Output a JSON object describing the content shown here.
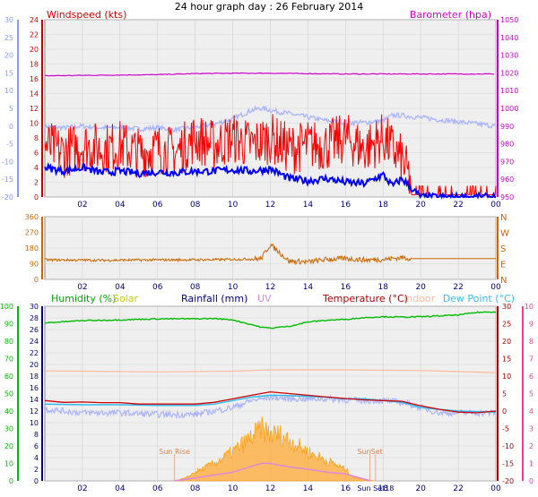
{
  "title": "24 hour graph day : 26 February 2014",
  "colors": {
    "wind_gust": "#ff0000",
    "wind_avg": "#0000ff",
    "barometer": "#cc00cc",
    "temperature": "#cc0000",
    "wind_dir": "#cc6600",
    "humidity": "#00bb00",
    "solar": "#ffaa33",
    "solar_label": "#dddd00",
    "rainfall": "#000080",
    "uv": "#dd88dd",
    "indoor": "#ffbb99",
    "dew_point": "#33bbee",
    "temp_left_axis": "#8899ff",
    "humidity_axis": "#00bb00",
    "dew_axis": "#ff3399",
    "plot_bg": "#efefef"
  },
  "chart_data": [
    {
      "type": "line",
      "title": "24 hour graph day : 26 February 2014",
      "left_label": "Windspeed (kts)",
      "right_label": "Barometer (hpa)",
      "left_ticks": [
        "24",
        "22",
        "20",
        "18",
        "16",
        "14",
        "12",
        "10",
        "8",
        "6",
        "4",
        "2",
        "0"
      ],
      "far_left_ticks": [
        "30",
        "25",
        "20",
        "15",
        "10",
        "5",
        "0",
        "-5",
        "-10",
        "-15",
        "-20"
      ],
      "right_ticks": [
        "1050",
        "1040",
        "1030",
        "1020",
        "1010",
        "1000",
        "990",
        "980",
        "970",
        "960",
        "950"
      ],
      "x_ticks": [
        "02",
        "04",
        "06",
        "08",
        "10",
        "12",
        "14",
        "16",
        "18",
        "20",
        "22",
        "00"
      ],
      "ylim_wind": [
        0,
        25
      ],
      "ylim_baro": [
        948,
        1052
      ],
      "ylim_temp": [
        -20,
        30
      ],
      "series": [
        {
          "name": "Windspeed (kts)",
          "key": "gust",
          "x": [
            0,
            1,
            2,
            3,
            4,
            5,
            6,
            7,
            8,
            9,
            10,
            11,
            12,
            13,
            14,
            15,
            16,
            17,
            18,
            19,
            19.5,
            20,
            21,
            22,
            23,
            24
          ],
          "values": [
            7,
            6,
            7,
            6.5,
            7,
            6,
            6.5,
            6,
            8,
            7,
            8,
            7,
            8,
            6.5,
            7,
            7,
            8,
            6.5,
            8,
            5,
            2,
            0.5,
            0.5,
            0.5,
            0.5,
            0.5
          ]
        },
        {
          "name": "Windspeed avg",
          "key": "avg",
          "x": [
            0,
            1,
            2,
            3,
            4,
            5,
            6,
            7,
            8,
            9,
            10,
            11,
            12,
            13,
            14,
            15,
            16,
            17,
            18,
            18.5,
            19,
            19.5,
            20,
            20.5,
            21,
            22,
            23,
            24
          ],
          "values": [
            4,
            3.5,
            4,
            3.3,
            3.5,
            3.2,
            3.4,
            3.3,
            3.5,
            3.5,
            3.7,
            3.5,
            3.8,
            2.5,
            2.2,
            2.5,
            2,
            1.8,
            3,
            1.5,
            2.5,
            1.2,
            0,
            0,
            0,
            0,
            0,
            0
          ]
        },
        {
          "name": "Barometer (hpa)",
          "key": "baro",
          "x": [
            0,
            2,
            4,
            6,
            8,
            10,
            12,
            14,
            16,
            18,
            20,
            22,
            24
          ],
          "values": [
            1018.4,
            1018.6,
            1018.8,
            1019.0,
            1019.6,
            1019.8,
            1019.8,
            1019.6,
            1019.4,
            1019.4,
            1019.4,
            1019.4,
            1019.4
          ]
        },
        {
          "name": "Temperature",
          "key": "temp",
          "x": [
            0,
            1,
            2,
            3,
            4,
            5,
            6,
            7,
            8,
            9,
            10,
            11,
            11.5,
            12,
            13,
            14,
            15,
            16,
            17,
            18,
            18.5,
            19,
            24
          ],
          "values": [
            0,
            -0.5,
            0,
            -0.5,
            -0.3,
            -0.8,
            -0.5,
            -1,
            -0.3,
            0.5,
            2,
            4.5,
            5,
            4.5,
            3.5,
            2.5,
            1.5,
            1,
            1,
            1.5,
            3,
            3,
            0
          ]
        }
      ]
    },
    {
      "type": "line",
      "right_labels": [
        "N",
        "W",
        "S",
        "E",
        "N"
      ],
      "left_ticks": [
        "360",
        "270",
        "180",
        "90",
        "0"
      ],
      "x_ticks": [
        "02",
        "04",
        "06",
        "08",
        "10",
        "12",
        "14",
        "16",
        "18",
        "20",
        "22",
        "00"
      ],
      "ylim": [
        0,
        360
      ],
      "series": [
        {
          "name": "Wind direction",
          "key": "dir",
          "x": [
            0,
            3,
            6,
            9,
            11.5,
            12,
            13,
            14,
            15,
            16,
            17,
            18,
            19,
            19.5,
            24
          ],
          "values": [
            112,
            110,
            112,
            113,
            118,
            200,
            105,
            100,
            115,
            120,
            112,
            115,
            125,
            120,
            120
          ]
        }
      ]
    },
    {
      "type": "line",
      "labels": [
        "Humidity (%)",
        "Solar",
        "Rainfall (mm)",
        "UV",
        "Temperature (°C)",
        "Indoor",
        "Dew Point (°C)"
      ],
      "humidity_ticks": [
        "100",
        "90",
        "80",
        "70",
        "60",
        "50",
        "40",
        "30",
        "20",
        "10",
        "0"
      ],
      "rain_ticks": [
        "30",
        "28",
        "26",
        "24",
        "22",
        "20",
        "18",
        "16",
        "14",
        "12",
        "10",
        "8",
        "6",
        "4",
        "2",
        "0"
      ],
      "temp_ticks": [
        "30",
        "25",
        "20",
        "15",
        "10",
        "5",
        "0",
        "-5",
        "-10",
        "-15",
        "-20"
      ],
      "dew_ticks": [
        "10",
        "9",
        "8",
        "7",
        "6",
        "5",
        "4",
        "3",
        "2",
        "1",
        "0"
      ],
      "x_ticks": [
        "02",
        "04",
        "06",
        "08",
        "10",
        "12",
        "14",
        "16",
        "18",
        "20",
        "22",
        "00"
      ],
      "ylim_humidity": [
        0,
        100
      ],
      "ylim_temp": [
        -20,
        30
      ],
      "annotations": [
        {
          "text": "Sun Rise",
          "x": 6.9
        },
        {
          "text": "SunSet",
          "x": 17.3
        },
        {
          "text": "Sun Set18",
          "x": 17.6
        }
      ],
      "series": [
        {
          "name": "Humidity (%)",
          "key": "hum",
          "x": [
            0,
            2,
            4,
            6,
            8,
            9,
            10,
            11,
            11.5,
            12,
            13,
            14,
            15,
            16,
            17,
            18,
            19,
            20,
            22,
            23,
            24
          ],
          "values": [
            90.5,
            91.8,
            92.2,
            92.8,
            92.8,
            93,
            92.2,
            89.5,
            88,
            87.5,
            88.5,
            91,
            92,
            92.5,
            93.5,
            94,
            93.8,
            94,
            95,
            96.5,
            96.8
          ]
        },
        {
          "name": "Temperature (°C)",
          "key": "temp",
          "x": [
            0,
            1,
            2,
            3,
            4,
            5,
            6,
            8,
            9,
            10,
            11,
            12,
            13,
            14,
            15,
            16,
            17,
            18,
            19,
            20,
            21,
            22,
            23,
            24
          ],
          "values": [
            3,
            2.5,
            2.6,
            2.4,
            2.4,
            2,
            2,
            2,
            2.5,
            3.5,
            4.5,
            5.5,
            5,
            4.5,
            4,
            3.6,
            3.2,
            3,
            2.8,
            1.5,
            0.5,
            -0.3,
            -0.5,
            0
          ]
        },
        {
          "name": "Indoor",
          "key": "indoor",
          "x": [
            0,
            6,
            10,
            12,
            16,
            20,
            24
          ],
          "values": [
            11.5,
            11.2,
            11.4,
            11.8,
            11.8,
            11.6,
            11
          ]
        },
        {
          "name": "Dew Point (°C)",
          "key": "dew",
          "x": [
            0,
            2,
            4,
            6,
            8,
            9,
            10,
            11,
            12,
            13,
            14,
            15,
            16,
            17,
            18,
            19,
            20,
            21,
            22,
            24
          ],
          "values": [
            2,
            1.8,
            1.8,
            1.6,
            1.6,
            2,
            3,
            4,
            4.5,
            4.4,
            4.2,
            4,
            3.5,
            3.5,
            3,
            2.5,
            1,
            0.5,
            0,
            -0.3
          ]
        },
        {
          "name": "Temperature low",
          "key": "tlow",
          "x": [
            0,
            2,
            4,
            6,
            8,
            9,
            10,
            11,
            12,
            13,
            14,
            15,
            16,
            17,
            18,
            19,
            20,
            21,
            22,
            24
          ],
          "values": [
            0.5,
            -0.5,
            -0.5,
            -1,
            -1,
            0,
            1,
            3,
            4,
            3.5,
            3.5,
            3.5,
            3.2,
            3,
            3,
            2.5,
            1,
            -0.5,
            -0.5,
            -0.5
          ]
        },
        {
          "name": "Solar",
          "key": "solar",
          "x": [
            6.9,
            7.5,
            8,
            9,
            10,
            11,
            11.5,
            12,
            12.5,
            13,
            14,
            15,
            16,
            16.5,
            17,
            17.5
          ],
          "values": [
            0,
            0.5,
            1.5,
            3,
            5,
            7.5,
            9,
            8,
            8,
            7,
            5,
            3.5,
            2,
            0.5,
            0.3,
            0
          ]
        },
        {
          "name": "UV",
          "key": "uv",
          "x": [
            6.9,
            8,
            9,
            10,
            11,
            11.5,
            12,
            12.5,
            13,
            14,
            15,
            16,
            17,
            17.3
          ],
          "values": [
            0,
            0.5,
            1,
            1.5,
            2.5,
            3,
            3,
            2.7,
            2.4,
            2,
            1.5,
            1.2,
            0.3,
            0
          ]
        }
      ]
    }
  ]
}
